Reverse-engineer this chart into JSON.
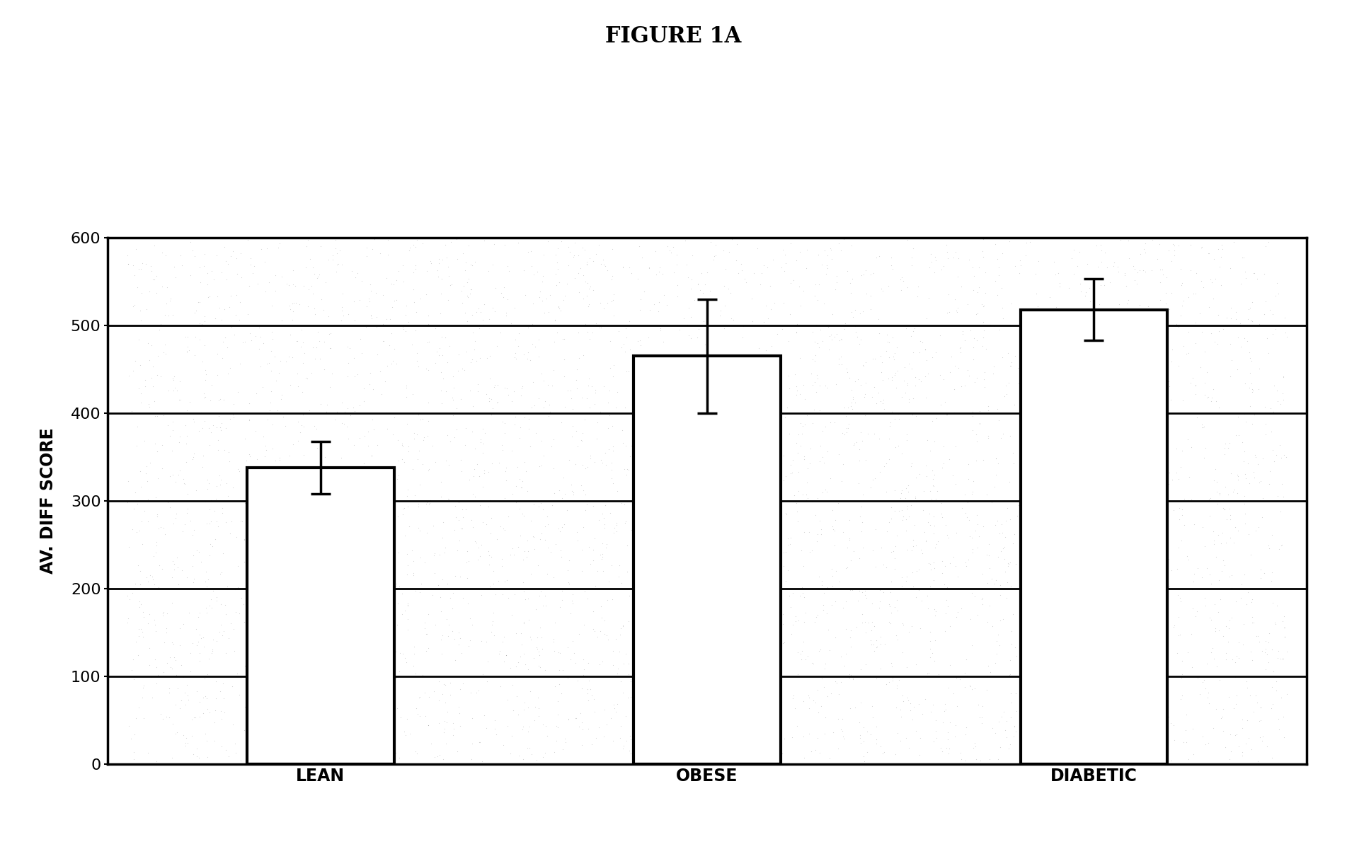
{
  "title": "FIGURE 1A",
  "ylabel": "AV. DIFF SCORE",
  "categories": [
    "LEAN",
    "OBESE",
    "DIABETIC"
  ],
  "values": [
    338,
    465,
    518
  ],
  "errors": [
    30,
    65,
    35
  ],
  "ylim": [
    0,
    600
  ],
  "yticks": [
    0,
    100,
    200,
    300,
    400,
    500,
    600
  ],
  "bar_color": "#ffffff",
  "bar_edgecolor": "#000000",
  "bar_linewidth": 3.0,
  "error_capsize": 10,
  "error_linewidth": 2.5,
  "error_color": "#000000",
  "background_color": "#ffffff",
  "fig_background_color": "#ffffff",
  "title_fontsize": 22,
  "ylabel_fontsize": 17,
  "xlabel_fontsize": 17,
  "tick_fontsize": 16,
  "bar_width": 0.38,
  "figsize": [
    19.03,
    12.0
  ],
  "dpi": 100,
  "noise_n": 5000,
  "noise_color": "#000000",
  "noise_alpha": 0.18,
  "noise_size": 2.5,
  "grid_linewidth": 2.0,
  "grid_color": "#000000"
}
